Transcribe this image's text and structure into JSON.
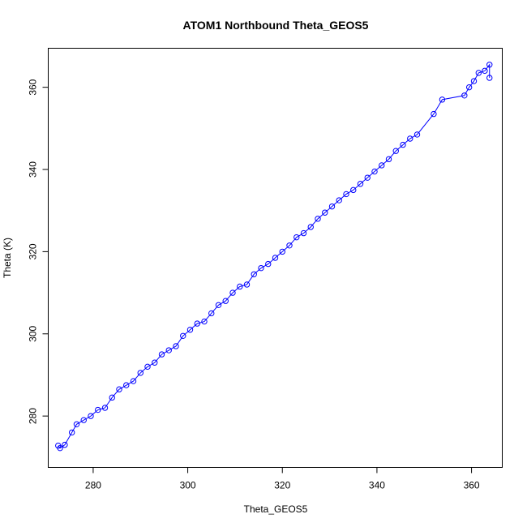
{
  "chart_data": {
    "type": "scatter",
    "title": "ATOM1 Northbound Theta_GEOS5",
    "xlabel": "Theta_GEOS5",
    "ylabel": "Theta (K)",
    "xlim": [
      270.5,
      366.5
    ],
    "ylim": [
      267.5,
      369.5
    ],
    "xticks": [
      280,
      300,
      320,
      340,
      360
    ],
    "yticks": [
      280,
      300,
      320,
      340,
      360
    ],
    "grid": false,
    "legend": "none",
    "color": "#0000ff",
    "marker": "open-circle",
    "connected_lines": true,
    "series": [
      {
        "values_xy": [
          [
            272.6,
            272.8
          ],
          [
            273.0,
            272.2
          ],
          [
            274.0,
            273.0
          ],
          [
            275.5,
            276.0
          ],
          [
            276.5,
            278.0
          ],
          [
            278.0,
            279.0
          ],
          [
            279.5,
            280.0
          ],
          [
            281.0,
            281.5
          ],
          [
            282.5,
            282.0
          ],
          [
            284.0,
            284.5
          ],
          [
            285.5,
            286.5
          ],
          [
            287.0,
            287.5
          ],
          [
            288.5,
            288.5
          ],
          [
            290.0,
            290.5
          ],
          [
            291.5,
            292.0
          ],
          [
            293.0,
            293.0
          ],
          [
            294.5,
            295.0
          ],
          [
            296.0,
            296.0
          ],
          [
            297.5,
            297.0
          ],
          [
            299.0,
            299.5
          ],
          [
            300.5,
            301.0
          ],
          [
            302.0,
            302.5
          ],
          [
            303.5,
            303.0
          ],
          [
            305.0,
            305.0
          ],
          [
            306.5,
            307.0
          ],
          [
            308.0,
            308.0
          ],
          [
            309.5,
            310.0
          ],
          [
            311.0,
            311.5
          ],
          [
            312.5,
            312.0
          ],
          [
            314.0,
            314.5
          ],
          [
            315.5,
            316.0
          ],
          [
            317.0,
            317.0
          ],
          [
            318.5,
            318.5
          ],
          [
            320.0,
            320.0
          ],
          [
            321.5,
            321.5
          ],
          [
            323.0,
            323.5
          ],
          [
            324.5,
            324.5
          ],
          [
            326.0,
            326.0
          ],
          [
            327.5,
            328.0
          ],
          [
            329.0,
            329.5
          ],
          [
            330.5,
            331.0
          ],
          [
            332.0,
            332.5
          ],
          [
            333.5,
            334.0
          ],
          [
            335.0,
            335.0
          ],
          [
            336.5,
            336.5
          ],
          [
            338.0,
            338.0
          ],
          [
            339.5,
            339.5
          ],
          [
            341.0,
            341.0
          ],
          [
            342.5,
            342.5
          ],
          [
            344.0,
            344.5
          ],
          [
            345.5,
            346.0
          ],
          [
            347.0,
            347.5
          ],
          [
            348.5,
            348.5
          ],
          [
            352.0,
            353.5
          ],
          [
            353.8,
            357.0
          ],
          [
            358.5,
            358.0
          ],
          [
            359.5,
            360.0
          ],
          [
            360.5,
            361.5
          ],
          [
            361.5,
            363.5
          ],
          [
            362.8,
            364.0
          ],
          [
            363.8,
            365.5
          ],
          [
            363.8,
            362.3
          ]
        ]
      }
    ]
  }
}
